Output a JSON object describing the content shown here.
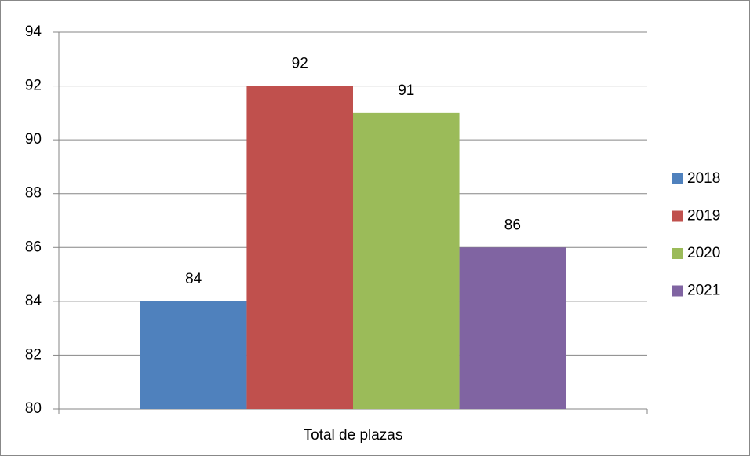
{
  "chart_data": {
    "type": "bar",
    "categories": [
      "Total de plazas"
    ],
    "series": [
      {
        "name": "2018",
        "color": "#4f81bd",
        "values": [
          84
        ]
      },
      {
        "name": "2019",
        "color": "#c0504d",
        "values": [
          92
        ]
      },
      {
        "name": "2020",
        "color": "#9bbb59",
        "values": [
          91
        ]
      },
      {
        "name": "2021",
        "color": "#8064a2",
        "values": [
          86
        ]
      }
    ],
    "ylim": [
      80,
      94
    ],
    "yticks": [
      80,
      82,
      84,
      86,
      88,
      90,
      92,
      94
    ],
    "grid": true,
    "legend": "right",
    "data_labels": true
  }
}
